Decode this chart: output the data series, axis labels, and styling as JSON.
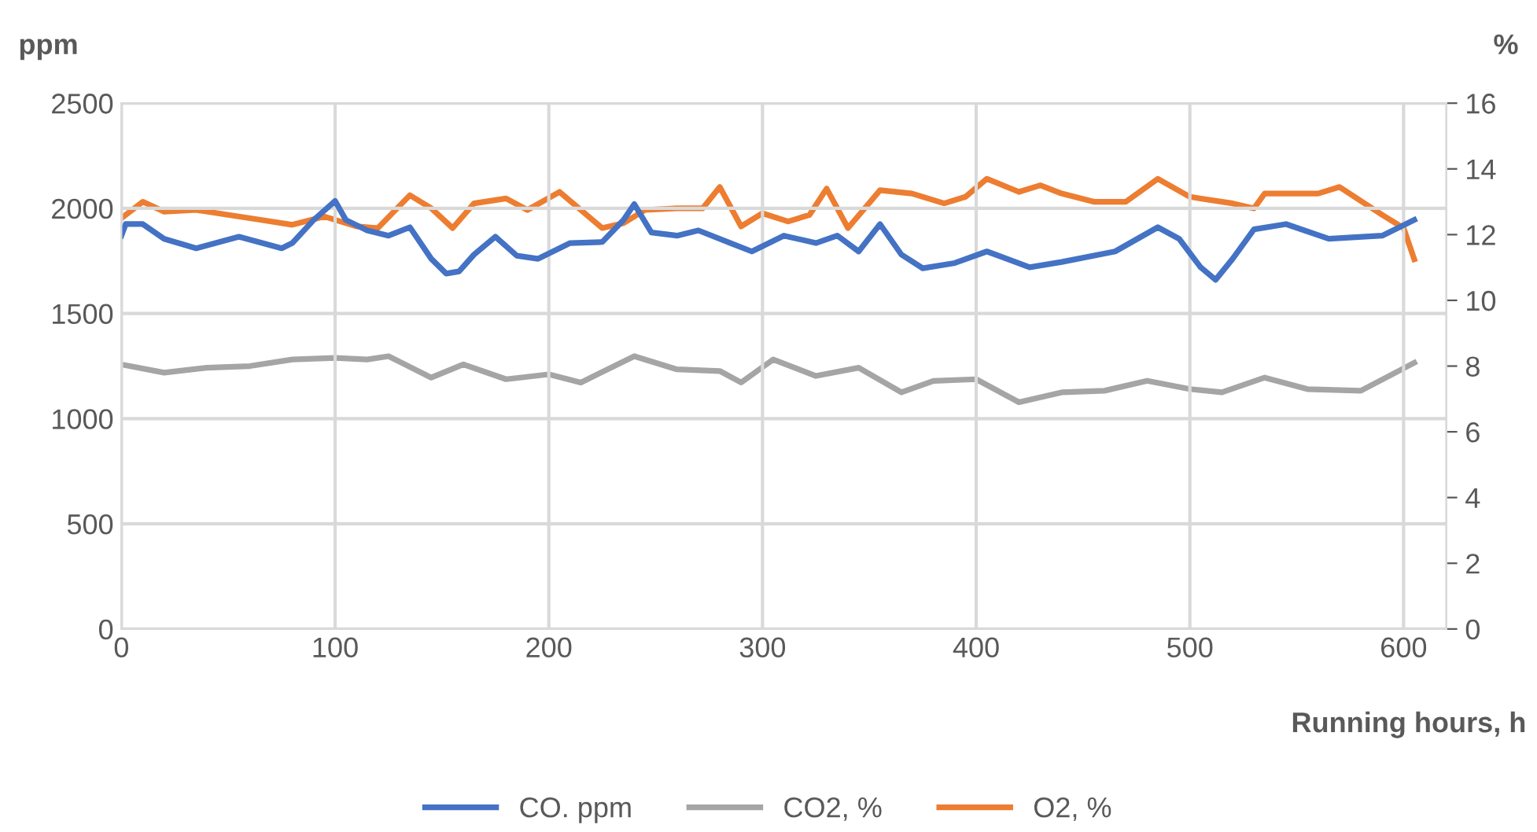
{
  "chart_data": {
    "type": "line",
    "ylabel": "ppm",
    "y2label": "%",
    "xlabel": "Running hours, h",
    "xlim": [
      0,
      620
    ],
    "xticks": [
      0,
      100,
      200,
      300,
      400,
      500,
      600
    ],
    "ylim": [
      0,
      2500
    ],
    "yticks": [
      0,
      500,
      1000,
      1500,
      2000,
      2500
    ],
    "y2lim": [
      0,
      16
    ],
    "y2ticks": [
      0,
      2,
      4,
      6,
      8,
      10,
      12,
      14,
      16
    ],
    "grid": true,
    "legend": "bottom",
    "marker": "none",
    "line_style": "solid",
    "series": [
      {
        "name": "CO. ppm",
        "color": "#4472c4",
        "x": [
          0,
          2,
          10,
          20,
          35,
          55,
          75,
          80,
          90,
          100,
          105,
          115,
          125,
          135,
          145,
          152,
          158,
          165,
          175,
          185,
          195,
          210,
          225,
          235,
          240,
          248,
          260,
          270,
          285,
          295,
          310,
          325,
          335,
          345,
          355,
          365,
          375,
          390,
          405,
          425,
          440,
          465,
          485,
          495,
          505,
          512,
          520,
          530,
          545,
          565,
          590,
          605
        ],
        "values": [
          1870,
          1925,
          1925,
          1855,
          1810,
          1865,
          1810,
          1835,
          1945,
          2035,
          1945,
          1895,
          1870,
          1910,
          1760,
          1690,
          1700,
          1780,
          1865,
          1775,
          1760,
          1835,
          1840,
          1945,
          2020,
          1885,
          1870,
          1895,
          1835,
          1795,
          1870,
          1835,
          1870,
          1795,
          1925,
          1780,
          1715,
          1740,
          1795,
          1720,
          1745,
          1795,
          1910,
          1855,
          1720,
          1660,
          1760,
          1900,
          1925,
          1855,
          1870,
          1945
        ]
      },
      {
        "name": "CO2, %",
        "color": "#a5a5a5",
        "axis": "y2",
        "x": [
          0,
          20,
          40,
          60,
          80,
          100,
          115,
          125,
          145,
          160,
          180,
          200,
          215,
          240,
          260,
          280,
          290,
          305,
          325,
          345,
          365,
          380,
          400,
          420,
          440,
          460,
          480,
          500,
          515,
          535,
          555,
          580,
          605
        ],
        "values": [
          8.05,
          7.8,
          7.95,
          8.0,
          8.2,
          8.25,
          8.2,
          8.3,
          7.65,
          8.05,
          7.6,
          7.75,
          7.5,
          8.3,
          7.9,
          7.85,
          7.5,
          8.2,
          7.7,
          7.95,
          7.2,
          7.55,
          7.6,
          6.9,
          7.2,
          7.25,
          7.55,
          7.3,
          7.2,
          7.65,
          7.3,
          7.25,
          8.1
        ]
      },
      {
        "name": "O2, %",
        "color": "#ed7d31",
        "axis": "y2",
        "x": [
          0,
          10,
          20,
          35,
          50,
          65,
          80,
          95,
          110,
          120,
          135,
          145,
          155,
          165,
          180,
          190,
          205,
          225,
          235,
          245,
          260,
          272,
          280,
          290,
          300,
          312,
          322,
          330,
          340,
          355,
          370,
          385,
          395,
          405,
          420,
          430,
          440,
          455,
          470,
          485,
          500,
          520,
          530,
          535,
          560,
          570,
          590,
          600,
          605
        ],
        "values": [
          12.5,
          13.0,
          12.7,
          12.75,
          12.6,
          12.45,
          12.3,
          12.55,
          12.25,
          12.2,
          13.2,
          12.8,
          12.2,
          12.95,
          13.1,
          12.75,
          13.3,
          12.2,
          12.35,
          12.75,
          12.8,
          12.8,
          13.45,
          12.25,
          12.65,
          12.4,
          12.6,
          13.4,
          12.2,
          13.35,
          13.25,
          12.95,
          13.15,
          13.7,
          13.3,
          13.5,
          13.25,
          13.0,
          13.0,
          13.7,
          13.15,
          12.95,
          12.8,
          13.25,
          13.25,
          13.45,
          12.6,
          12.2,
          11.25
        ]
      }
    ]
  }
}
